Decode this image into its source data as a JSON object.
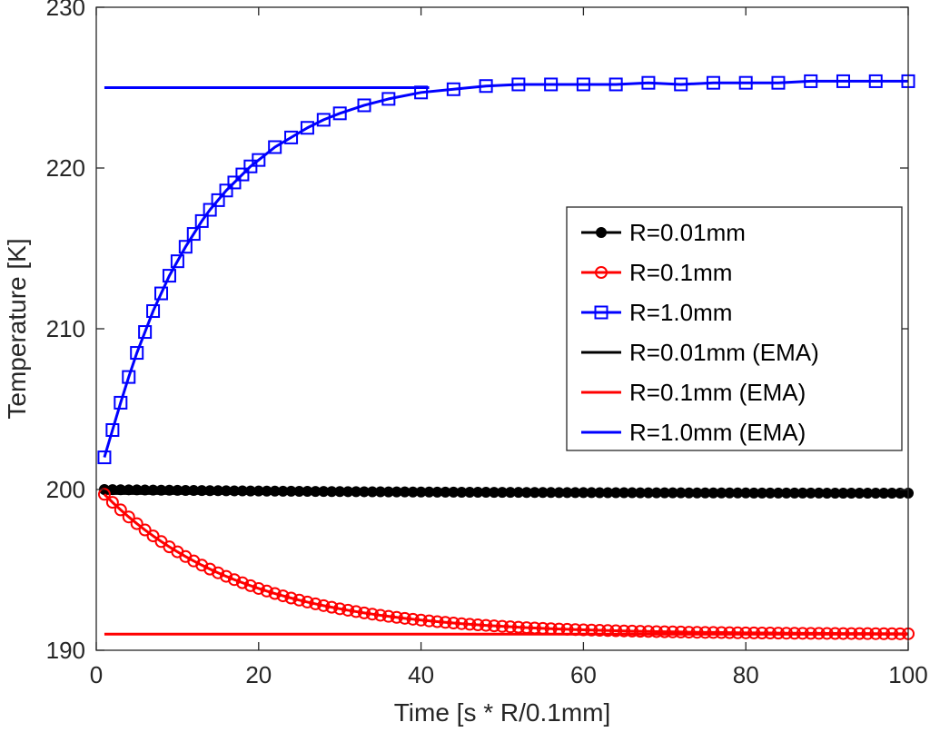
{
  "chart_data": {
    "type": "line",
    "title": "",
    "xlabel": "Time [s * R/0.1mm]",
    "ylabel": "Temperature [K]",
    "xlim": [
      0,
      100
    ],
    "ylim": [
      190,
      230
    ],
    "xticks": [
      0,
      20,
      40,
      60,
      80,
      100
    ],
    "yticks": [
      190,
      200,
      210,
      220,
      230
    ],
    "x_tick_labels": [
      "0",
      "20",
      "40",
      "60",
      "80",
      "100"
    ],
    "y_tick_labels": [
      "190",
      "200",
      "210",
      "220",
      "230"
    ],
    "grid": false,
    "box": true,
    "legend_position": "right-middle",
    "series": [
      {
        "name": "R=0.01mm",
        "color": "#000000",
        "marker": "filled-circle",
        "kind": "exp",
        "x_start": 1,
        "x_end": 100,
        "step": 1,
        "start": 200.0,
        "end": 199.75,
        "tau": 40
      },
      {
        "name": "R=0.1mm",
        "color": "#ff0000",
        "marker": "open-circle",
        "kind": "exp",
        "x_start": 1,
        "x_end": 100,
        "step": 1,
        "start": 199.7,
        "end": 191.0,
        "tau": 17
      },
      {
        "name": "R=1.0mm",
        "color": "#0000ff",
        "marker": "open-square",
        "kind": "points",
        "x": [
          1,
          2,
          3,
          4,
          5,
          6,
          7,
          8,
          9,
          10,
          11,
          12,
          13,
          14,
          15,
          16,
          17,
          18,
          19,
          20,
          22,
          24,
          26,
          28,
          30,
          33,
          36,
          40,
          44,
          48,
          52,
          56,
          60,
          64,
          68,
          72,
          76,
          80,
          84,
          88,
          92,
          96,
          100
        ],
        "y": [
          202.0,
          203.7,
          205.4,
          207.0,
          208.5,
          209.8,
          211.1,
          212.2,
          213.3,
          214.2,
          215.1,
          215.9,
          216.7,
          217.4,
          218.0,
          218.6,
          219.1,
          219.6,
          220.1,
          220.5,
          221.3,
          221.9,
          222.5,
          223.0,
          223.4,
          223.9,
          224.3,
          224.7,
          224.9,
          225.1,
          225.2,
          225.2,
          225.2,
          225.2,
          225.3,
          225.2,
          225.3,
          225.3,
          225.3,
          225.4,
          225.4,
          225.4,
          225.4
        ]
      },
      {
        "name": "R=0.01mm (EMA)",
        "color": "#000000",
        "marker": "none",
        "kind": "const",
        "x_start": 1,
        "x_end": 100,
        "value": 199.75
      },
      {
        "name": "R=0.1mm (EMA)",
        "color": "#ff0000",
        "marker": "none",
        "kind": "const",
        "x_start": 1,
        "x_end": 100,
        "value": 191.0
      },
      {
        "name": "R=1.0mm (EMA)",
        "color": "#0000ff",
        "marker": "none",
        "kind": "const",
        "x_start": 1,
        "x_end": 41,
        "value": 225.0
      }
    ]
  }
}
